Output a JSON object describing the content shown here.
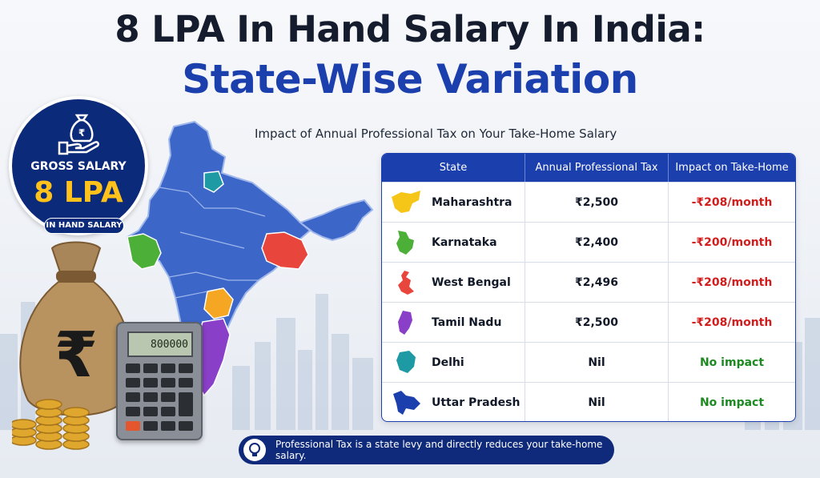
{
  "title_line1": "8 LPA In Hand Salary In India:",
  "title_line2": "State-Wise Variation",
  "subtitle": "Impact of Annual Professional Tax on Your Take-Home Salary",
  "badge": {
    "gross_label": "GROSS SALARY",
    "amount": "8 LPA",
    "pill": "IN HAND SALARY",
    "icon": "money-bag-hand-icon"
  },
  "calculator_display": "800000",
  "table": {
    "headers": [
      "State",
      "Annual Professional Tax",
      "Impact on Take-Home"
    ],
    "rows": [
      {
        "state": "Maharashtra",
        "tax": "₹2,500",
        "impact": "-₹208/month",
        "impact_type": "negative",
        "color": "#f5c518"
      },
      {
        "state": "Karnataka",
        "tax": "₹2,400",
        "impact": "-₹200/month",
        "impact_type": "negative",
        "color": "#4caf38"
      },
      {
        "state": "West Bengal",
        "tax": "₹2,496",
        "impact": "-₹208/month",
        "impact_type": "negative",
        "color": "#e8453c"
      },
      {
        "state": "Tamil Nadu",
        "tax": "₹2,500",
        "impact": "-₹208/month",
        "impact_type": "negative",
        "color": "#8a3fc8"
      },
      {
        "state": "Delhi",
        "tax": "Nil",
        "impact": "No impact",
        "impact_type": "positive",
        "color": "#1e9aa5"
      },
      {
        "state": "Uttar Pradesh",
        "tax": "Nil",
        "impact": "No impact",
        "impact_type": "positive",
        "color": "#1c3fae"
      }
    ]
  },
  "note": "Professional Tax is a state levy and directly reduces your take-home salary.",
  "colors": {
    "accent": "#1c3fae",
    "dark_navy": "#0c2a7a",
    "negative": "#d21d1d",
    "positive": "#1c8a21",
    "gold": "#ffc21a"
  }
}
